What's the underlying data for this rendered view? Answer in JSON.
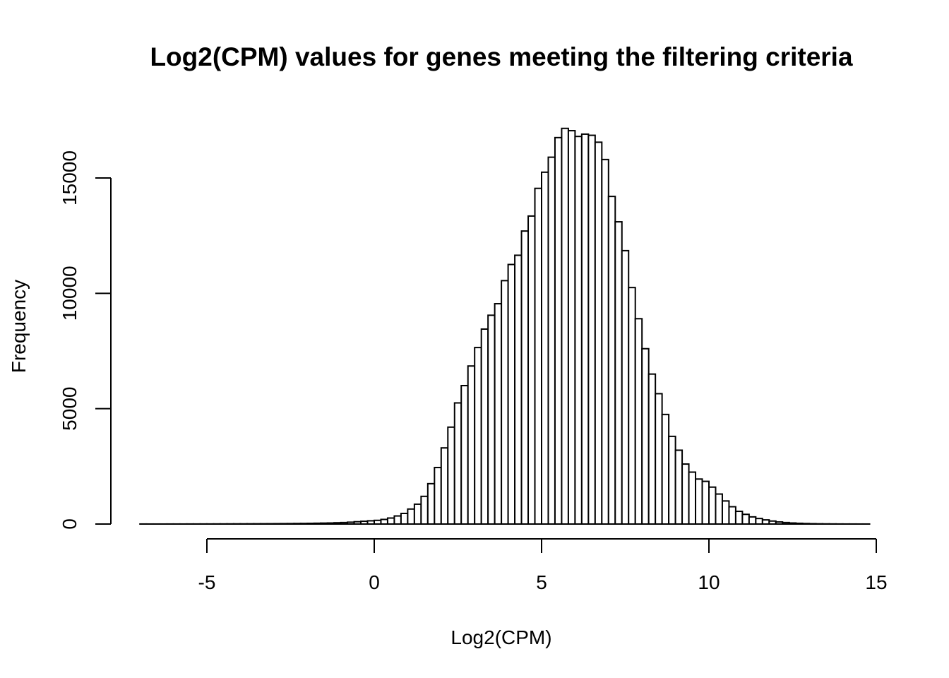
{
  "chart_data": {
    "type": "bar",
    "subtype": "histogram",
    "title": "Log2(CPM) values for genes meeting the filtering criteria",
    "xlabel": "Log2(CPM)",
    "ylabel": "Frequency",
    "xlim": [
      -7.1,
      14.6
    ],
    "ylim": [
      0,
      17200
    ],
    "x_ticks": [
      -5,
      0,
      5,
      10,
      15
    ],
    "x_tick_labels": [
      "-5",
      "0",
      "5",
      "10",
      "15"
    ],
    "y_ticks": [
      0,
      5000,
      10000,
      15000
    ],
    "y_tick_labels": [
      "0",
      "5000",
      "10000",
      "15000"
    ],
    "grid": false,
    "legend": "none",
    "bar_fill": "#ffffff",
    "bar_stroke": "#000000",
    "bin_start": -7.0,
    "bin_width": 0.2,
    "values": [
      2,
      1,
      1,
      1,
      2,
      2,
      2,
      3,
      3,
      4,
      4,
      5,
      6,
      7,
      8,
      9,
      10,
      11,
      13,
      14,
      16,
      18,
      20,
      23,
      26,
      30,
      35,
      40,
      45,
      55,
      65,
      80,
      100,
      120,
      140,
      160,
      200,
      260,
      350,
      460,
      650,
      860,
      1200,
      1750,
      2450,
      3300,
      4200,
      5250,
      6000,
      6850,
      7650,
      8450,
      9050,
      9550,
      10550,
      11250,
      11650,
      12700,
      13350,
      14550,
      15250,
      15900,
      16750,
      17150,
      17050,
      16800,
      16900,
      16850,
      16550,
      15800,
      14200,
      13100,
      11850,
      10250,
      8900,
      7600,
      6500,
      5650,
      4750,
      3800,
      3200,
      2600,
      2250,
      1950,
      1850,
      1600,
      1300,
      1000,
      750,
      550,
      420,
      310,
      240,
      180,
      130,
      90,
      65,
      45,
      32,
      22,
      15,
      10,
      7,
      5,
      3,
      2,
      2,
      1,
      1
    ]
  }
}
